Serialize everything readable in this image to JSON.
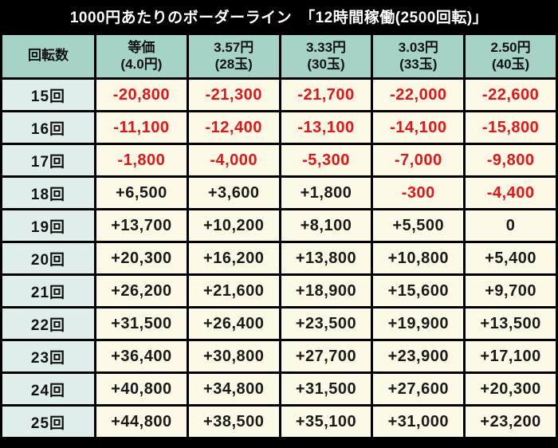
{
  "title": "1000円あたりのボーダーライン　「12時間稼働(2500回転)」",
  "colors": {
    "background": "#000000",
    "header_bg": "#a6d3c8",
    "row_label_bg": "#dfeeea",
    "value_bg": "#fdf9e7",
    "negative_text": "#e61414",
    "positive_text": "#1a1a1a",
    "title_text": "#ffffff"
  },
  "chart_data": {
    "type": "table",
    "title": "1000円あたりのボーダーライン　「12時間稼働(2500回転)」",
    "columns": [
      "回転数",
      "等価\n(4.0円)",
      "3.57円\n(28玉)",
      "3.33円\n(30玉)",
      "3.03円\n(33玉)",
      "2.50円\n(40玉)"
    ],
    "rows": [
      {
        "label": "15回",
        "values": [
          "-20,800",
          "-21,300",
          "-21,700",
          "-22,000",
          "-22,600"
        ]
      },
      {
        "label": "16回",
        "values": [
          "-11,100",
          "-12,400",
          "-13,100",
          "-14,100",
          "-15,800"
        ]
      },
      {
        "label": "17回",
        "values": [
          "-1,800",
          "-4,000",
          "-5,300",
          "-7,000",
          "-9,800"
        ]
      },
      {
        "label": "18回",
        "values": [
          "+6,500",
          "+3,600",
          "+1,800",
          "-300",
          "-4,400"
        ]
      },
      {
        "label": "19回",
        "values": [
          "+13,700",
          "+10,200",
          "+8,100",
          "+5,500",
          "0"
        ]
      },
      {
        "label": "20回",
        "values": [
          "+20,300",
          "+16,200",
          "+13,800",
          "+10,800",
          "+5,400"
        ]
      },
      {
        "label": "21回",
        "values": [
          "+26,200",
          "+21,600",
          "+18,900",
          "+15,600",
          "+9,700"
        ]
      },
      {
        "label": "22回",
        "values": [
          "+31,500",
          "+26,400",
          "+23,500",
          "+19,900",
          "+13,500"
        ]
      },
      {
        "label": "23回",
        "values": [
          "+36,400",
          "+30,800",
          "+27,700",
          "+23,900",
          "+17,100"
        ]
      },
      {
        "label": "24回",
        "values": [
          "+40,800",
          "+34,800",
          "+31,500",
          "+27,600",
          "+20,300"
        ]
      },
      {
        "label": "25回",
        "values": [
          "+44,800",
          "+38,500",
          "+35,100",
          "+31,000",
          "+23,200"
        ]
      }
    ]
  }
}
